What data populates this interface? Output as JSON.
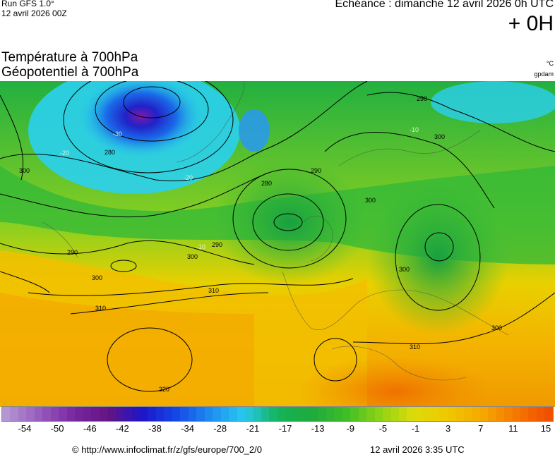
{
  "header": {
    "run_title": "Run GFS 1.0°",
    "run_date": "12 avril 2026 00Z",
    "forecast_time": "Echéance : dimanche 12 avril 2026 0h UTC",
    "forecast_offset": "+ 0H"
  },
  "parameters": {
    "line1": "Température à 700hPa",
    "line2": "Géopotentiel à 700hPa",
    "unit_temp": "°C",
    "unit_geo": "gpdam"
  },
  "map": {
    "contours": [
      {
        "label": "280",
        "value": 280
      },
      {
        "label": "290",
        "value": 290
      },
      {
        "label": "300",
        "value": 300
      },
      {
        "label": "310",
        "value": 310
      },
      {
        "label": "320",
        "value": 320
      }
    ],
    "temp_labels": [
      "-10",
      "-20",
      "-30"
    ]
  },
  "colorbar": {
    "ticks": [
      "-54",
      "-50",
      "-46",
      "-42",
      "-38",
      "-34",
      "-28",
      "-21",
      "-17",
      "-13",
      "-9",
      "-5",
      "-1",
      "3",
      "7",
      "11",
      "15"
    ]
  },
  "footer": {
    "source": "© http://www.infoclimat.fr/z/gfs/europe/700_2/0",
    "render_time": "12 avril 2026  3:35 UTC"
  }
}
